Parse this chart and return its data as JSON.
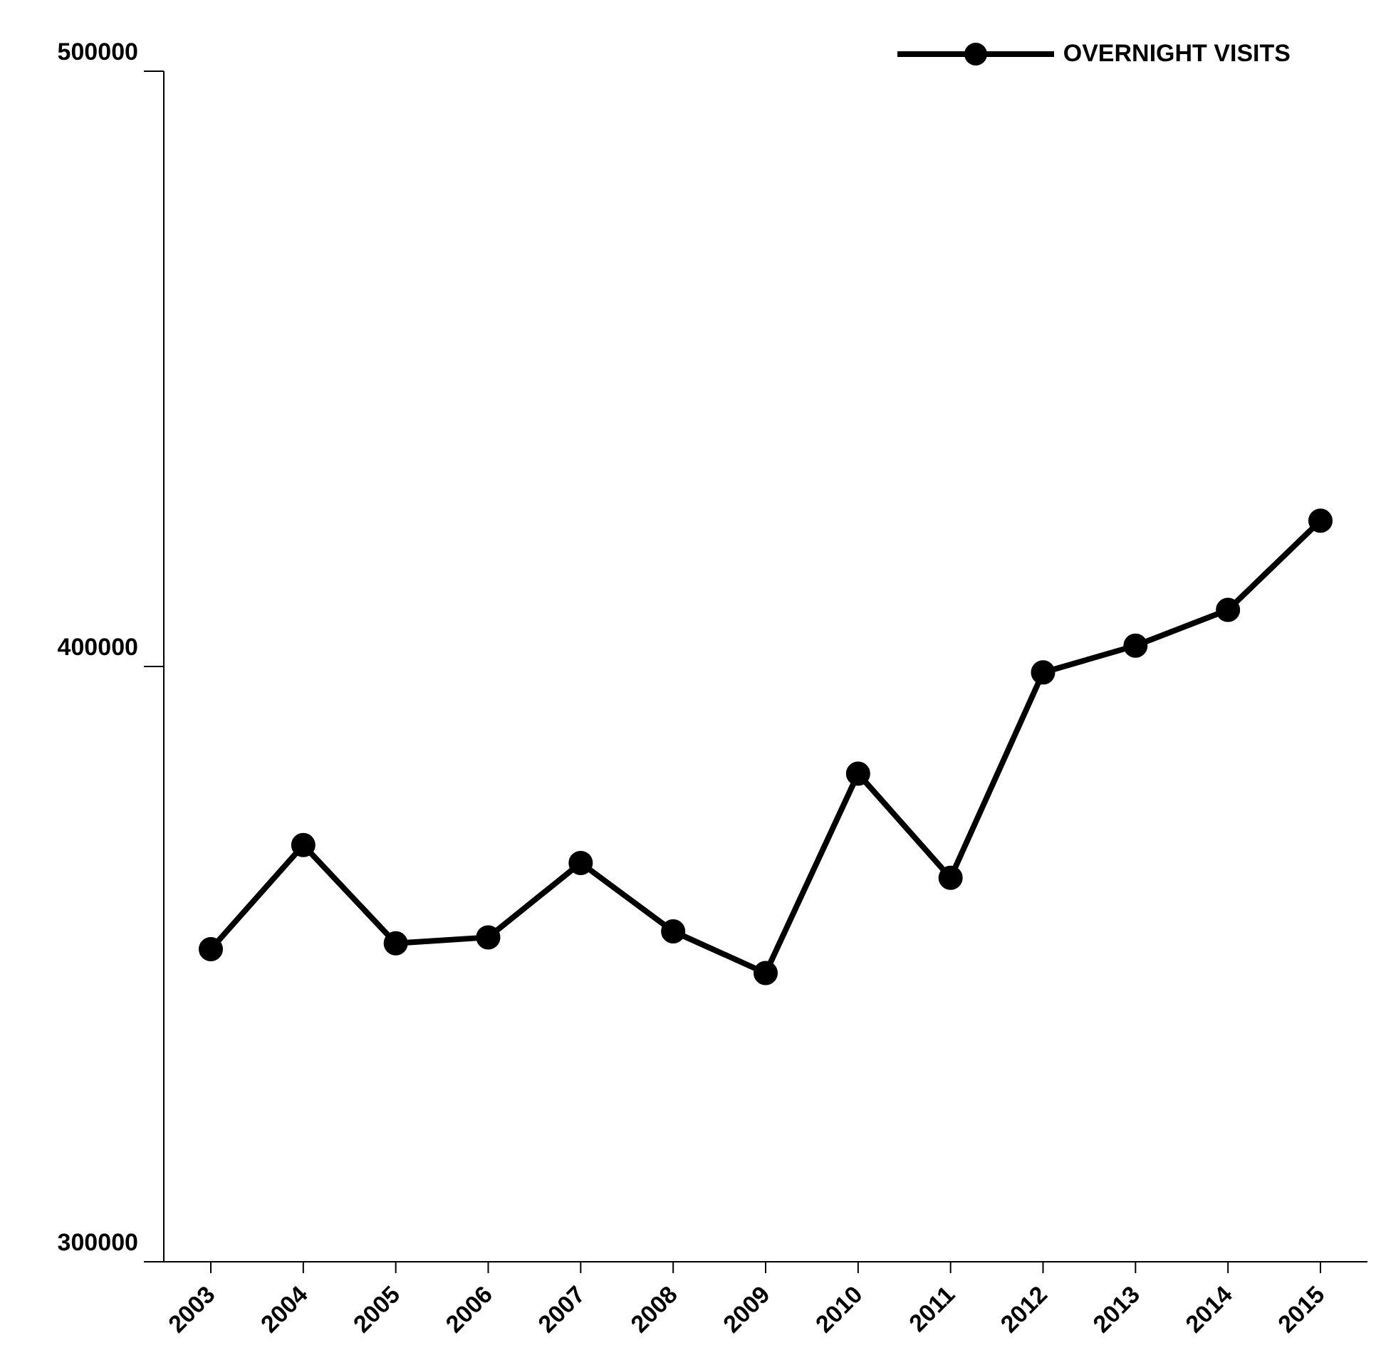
{
  "chart_data": {
    "type": "line",
    "categories": [
      "2003",
      "2004",
      "2005",
      "2006",
      "2007",
      "2008",
      "2009",
      "2010",
      "2011",
      "2012",
      "2013",
      "2014",
      "2015"
    ],
    "series": [
      {
        "name": "OVERNIGHT VISITS",
        "color": "#000000",
        "values": [
          352500,
          370000,
          353500,
          354500,
          367000,
          355500,
          348500,
          382000,
          364500,
          399000,
          403500,
          409500,
          424500
        ]
      }
    ],
    "ylim": [
      300000,
      500000
    ],
    "yticks": [
      300000,
      400000,
      500000
    ],
    "grid": false,
    "legend": "top right",
    "marker": "circle",
    "line_style": "solid"
  }
}
